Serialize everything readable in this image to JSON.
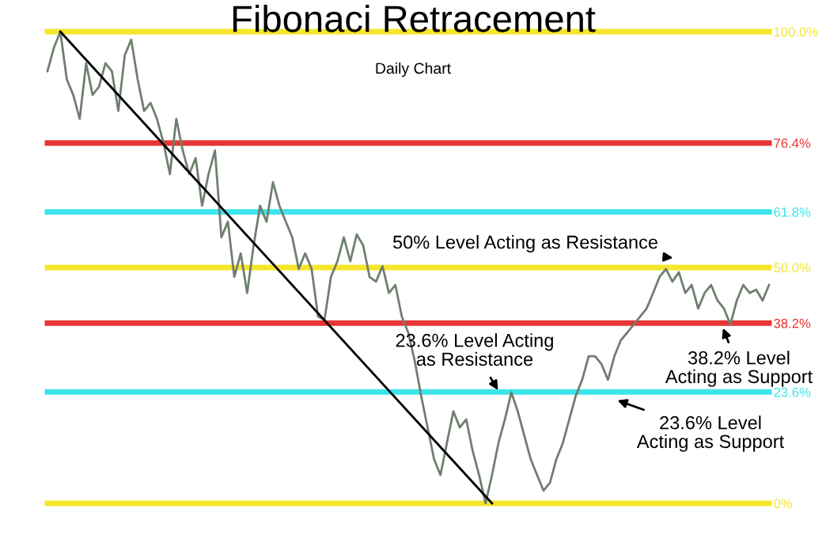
{
  "chart_data": {
    "type": "line",
    "title": "Fibonaci Retracement",
    "subtitle": "Daily Chart",
    "categories": [
      null,
      null,
      null,
      null,
      null,
      null,
      null,
      null,
      null,
      null,
      null,
      null,
      null,
      null,
      null,
      null,
      null,
      null,
      null,
      null,
      null,
      null,
      null,
      null,
      null,
      null,
      null,
      null,
      null,
      null,
      null,
      null,
      null,
      null,
      null,
      null,
      null,
      null,
      null,
      null,
      null,
      null,
      null,
      null,
      null,
      null,
      null,
      null,
      null,
      null,
      null,
      null,
      null,
      null,
      null,
      null,
      null,
      null,
      null,
      null,
      null,
      null,
      null,
      null,
      null,
      null,
      null,
      null,
      null,
      null,
      null,
      null,
      null,
      null,
      null,
      null,
      null,
      null,
      null,
      null,
      null,
      null,
      null,
      null,
      null,
      null,
      null,
      null,
      null,
      null,
      null,
      null,
      null,
      null,
      null,
      null,
      null,
      null,
      null,
      null,
      null,
      null,
      null,
      null,
      null,
      null,
      null,
      null,
      null,
      null,
      null,
      null,
      null
    ],
    "series": [
      {
        "color": "#6f7f6f",
        "values": [
          91.6,
          96.6,
          100,
          89.9,
          86.6,
          81.5,
          93.3,
          86.6,
          88.3,
          93.3,
          91.6,
          83.2,
          95.0,
          98.3,
          89.9,
          83.2,
          84.9,
          81.5,
          76.5,
          69.8,
          81.5,
          74.8,
          69.8,
          73.2,
          63.1,
          69.8,
          74.8,
          56.4,
          59.7,
          48.0,
          53.0,
          44.6,
          54.7,
          63.1,
          59.7,
          68.1,
          63.1,
          59.7,
          56.4,
          49.7,
          53.0,
          49.7,
          39.6,
          38.9,
          48.0,
          51.3,
          56.4,
          51.3,
          57.0,
          54.7,
          48.0,
          47.0,
          50.3,
          44.6,
          46.3,
          39.6,
          36.2,
          30.2,
          22.8,
          16.1,
          9.4,
          6.0,
          12.8,
          19.5,
          16.1,
          17.8,
          11.1,
          6.0,
          0,
          6.0,
          12.8,
          17.8,
          23.5,
          19.5,
          14.4,
          9.4,
          6.0,
          2.7,
          4.4,
          9.4,
          12.8,
          17.8,
          22.8,
          26.2,
          31.2,
          31.2,
          29.5,
          26.2,
          31.2,
          34.6,
          36.2,
          37.9,
          39.6,
          41.3,
          44.6,
          48.0,
          49.7,
          47.0,
          49.0,
          44.6,
          46.3,
          41.3,
          44.6,
          46.3,
          43.0,
          41.3,
          37.9,
          43.0,
          46.3,
          44.6,
          45.3,
          43.0,
          46.3
        ]
      },
      {
        "color": "#000000",
        "values": [
          null,
          null,
          100,
          null,
          null,
          null,
          null,
          null,
          null,
          null,
          null,
          null,
          null,
          null,
          null,
          null,
          null,
          null,
          null,
          null,
          null,
          null,
          null,
          null,
          null,
          null,
          null,
          null,
          null,
          null,
          null,
          null,
          null,
          null,
          null,
          null,
          null,
          null,
          null,
          null,
          null,
          null,
          null,
          null,
          null,
          null,
          null,
          null,
          null,
          null,
          null,
          null,
          null,
          null,
          null,
          null,
          null,
          null,
          null,
          null,
          null,
          null,
          null,
          null,
          null,
          null,
          null,
          null,
          null,
          0,
          null,
          null,
          null,
          null,
          null,
          null,
          null,
          null,
          null,
          null,
          null,
          null,
          null,
          null,
          null,
          null,
          null,
          null,
          null,
          null,
          null,
          null,
          null,
          null,
          null,
          null,
          null,
          null,
          null,
          null,
          null,
          null,
          null,
          null,
          null,
          null,
          null,
          null,
          null,
          null,
          null,
          null,
          null
        ]
      }
    ],
    "ylim": [
      0,
      100
    ],
    "yticks": [
      {
        "value": 0,
        "label": "0%"
      },
      {
        "value": 23.6,
        "label": "23.6%"
      },
      {
        "value": 38.2,
        "label": "38.2%"
      },
      {
        "value": 50,
        "label": "50.0%"
      },
      {
        "value": 61.8,
        "label": "61.8%"
      },
      {
        "value": 76.4,
        "label": "76.4%"
      },
      {
        "value": 100,
        "label": "100.0%"
      }
    ],
    "tick_labels": "y",
    "ref_lines": [
      {
        "axis": "y",
        "value": 100,
        "color": "#f5e62a"
      },
      {
        "axis": "y",
        "value": 76.4,
        "color": "#e83434"
      },
      {
        "axis": "y",
        "value": 61.8,
        "color": "#3ce4ec"
      },
      {
        "axis": "y",
        "value": 50,
        "color": "#f5e62a"
      },
      {
        "axis": "y",
        "value": 38.2,
        "color": "#e83434"
      },
      {
        "axis": "y",
        "value": 23.6,
        "color": "#3ce4ec"
      },
      {
        "axis": "y",
        "value": 0,
        "color": "#f5e62a"
      }
    ],
    "annotations": [
      {
        "text": "50% Level Acting as Resistance",
        "y": 52
      },
      {
        "text": "23.6% Level Acting\nas Resistance",
        "y": 23.6
      },
      {
        "text": "38.2% Level\nActing as Support",
        "y": 37.6
      },
      {
        "text": "23.6% Level\nActing as Support",
        "y": 22
      }
    ]
  }
}
